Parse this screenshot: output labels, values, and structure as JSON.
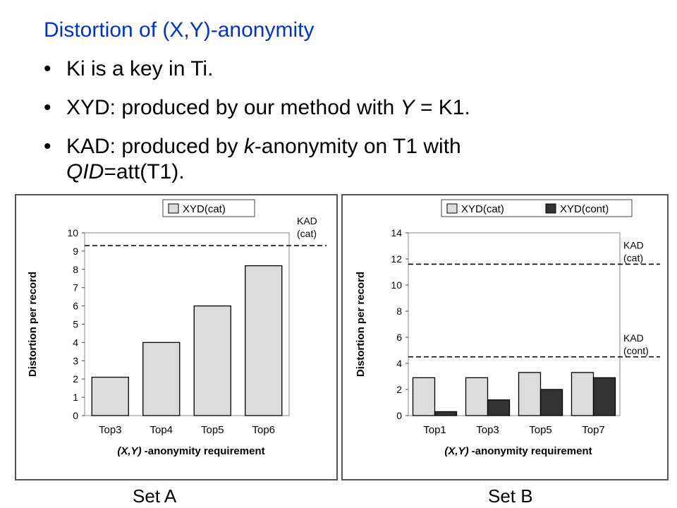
{
  "slide": {
    "title": "Distortion of (X,Y)-anonymity",
    "bullets": [
      {
        "text": "Ki is a key in Ti."
      },
      {
        "pre": "XYD: produced by our method with ",
        "italic": "Y",
        "post": " = K1."
      },
      {
        "pre": "KAD: produced by ",
        "italic": "k",
        "post": "-anonymity on T1 with",
        "line2_italic": "QID",
        "line2_post": "=att(T1)."
      }
    ],
    "set_labels": [
      "Set A",
      "Set B"
    ]
  },
  "colors": {
    "title": "#0033cc",
    "xyd_cat": "#dcdcdc",
    "xyd_cont": "#333333"
  },
  "chart_data": [
    {
      "type": "bar",
      "categories": [
        "Top3",
        "Top4",
        "Top5",
        "Top6"
      ],
      "series": [
        {
          "name": "XYD(cat)",
          "values": [
            2.1,
            4.0,
            6.0,
            8.2
          ]
        }
      ],
      "reference_lines": [
        {
          "label": [
            "KAD",
            "(cat)"
          ],
          "value": 9.3
        }
      ],
      "xlabel_italic": "(X,Y)",
      "xlabel": "-anonymity requirement",
      "ylabel": "Distortion per record",
      "ylim": [
        0,
        10
      ],
      "yticks": [
        0,
        1,
        2,
        3,
        4,
        5,
        6,
        7,
        8,
        9,
        10
      ],
      "legend": "top"
    },
    {
      "type": "bar",
      "categories": [
        "Top1",
        "Top3",
        "Top5",
        "Top7"
      ],
      "series": [
        {
          "name": "XYD(cat)",
          "values": [
            2.9,
            2.9,
            3.3,
            3.3
          ]
        },
        {
          "name": "XYD(cont)",
          "values": [
            0.3,
            1.2,
            2.0,
            2.9
          ]
        }
      ],
      "reference_lines": [
        {
          "label": [
            "KAD",
            "(cat)"
          ],
          "value": 11.6
        },
        {
          "label": [
            "KAD",
            "(cont)"
          ],
          "value": 4.5
        }
      ],
      "xlabel_italic": "(X,Y)",
      "xlabel": "-anonymity requirement",
      "ylabel": "Distortion per record",
      "ylim": [
        0,
        14
      ],
      "yticks": [
        0,
        2,
        4,
        6,
        8,
        10,
        12,
        14
      ],
      "legend": "top"
    }
  ]
}
